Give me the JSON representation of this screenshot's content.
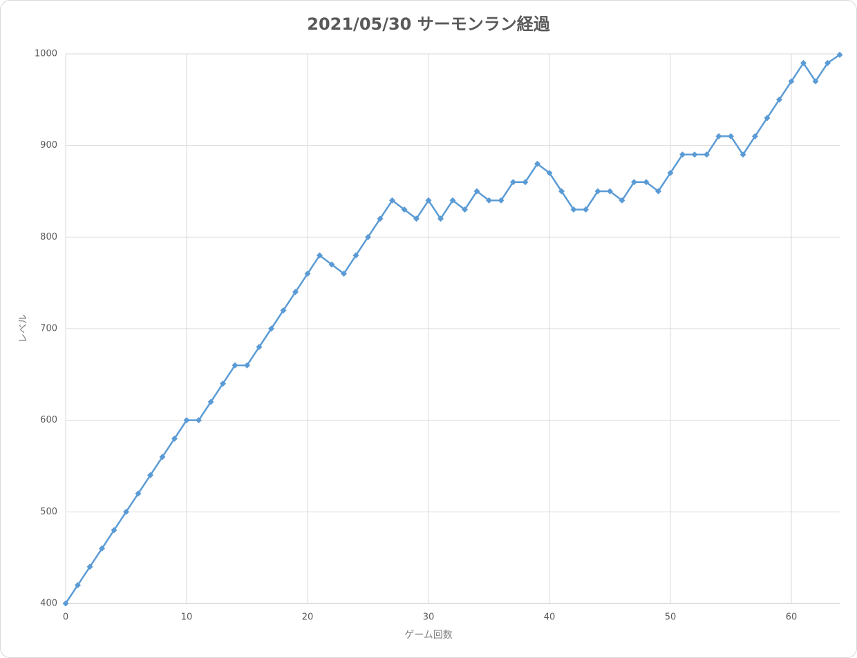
{
  "chart_data": {
    "type": "line",
    "title": "2021/05/30 サーモンラン経過",
    "x_label": "ゲーム回数",
    "y_label": "レベル",
    "x": [
      0,
      1,
      2,
      3,
      4,
      5,
      6,
      7,
      8,
      9,
      10,
      11,
      12,
      13,
      14,
      15,
      16,
      17,
      18,
      19,
      20,
      21,
      22,
      23,
      24,
      25,
      26,
      27,
      28,
      29,
      30,
      31,
      32,
      33,
      34,
      35,
      36,
      37,
      38,
      39,
      40,
      41,
      42,
      43,
      44,
      45,
      46,
      47,
      48,
      49,
      50,
      51,
      52,
      53,
      54,
      55,
      56,
      57,
      58,
      59,
      60,
      61,
      62,
      63,
      64
    ],
    "series": [
      {
        "color": "#5b9bd5",
        "values": [
          400,
          420,
          440,
          460,
          480,
          500,
          520,
          540,
          560,
          580,
          600,
          600,
          620,
          640,
          660,
          660,
          680,
          700,
          720,
          740,
          760,
          780,
          770,
          760,
          780,
          800,
          820,
          840,
          830,
          820,
          840,
          820,
          840,
          830,
          850,
          840,
          840,
          860,
          860,
          880,
          870,
          850,
          830,
          830,
          850,
          850,
          840,
          860,
          860,
          850,
          870,
          890,
          890,
          890,
          910,
          910,
          890,
          910,
          930,
          950,
          970,
          990,
          970,
          990,
          999
        ]
      }
    ],
    "xlim": [
      0,
      64
    ],
    "xticks": [
      0,
      10,
      20,
      30,
      40,
      50,
      60
    ],
    "ylim": [
      400,
      1000
    ],
    "yticks": [
      400,
      500,
      600,
      700,
      800,
      900,
      1000
    ],
    "grid": true
  }
}
